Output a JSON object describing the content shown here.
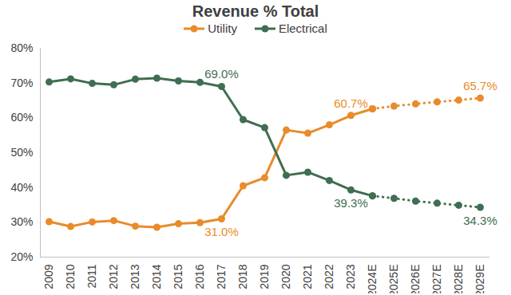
{
  "chart_data": {
    "type": "line",
    "title": "Revenue % Total",
    "categories": [
      "2009",
      "2010",
      "2011",
      "2012",
      "2013",
      "2014",
      "2015",
      "2016",
      "2017",
      "2018",
      "2019",
      "2020",
      "2021",
      "2022",
      "2023",
      "2024E",
      "2025E",
      "2026E",
      "2027E",
      "2028E",
      "2029E"
    ],
    "series": [
      {
        "name": "Utility",
        "color": "#E98B2A",
        "line_style": "solid",
        "marker": "circle",
        "values": [
          30.2,
          28.8,
          30.1,
          30.5,
          28.9,
          28.6,
          29.6,
          29.9,
          31.0,
          40.5,
          42.8,
          56.5,
          55.6,
          58.0,
          60.7,
          62.6,
          null,
          null,
          null,
          null,
          null
        ]
      },
      {
        "name": "Electrical",
        "color": "#3F6E50",
        "line_style": "solid",
        "marker": "circle",
        "values": [
          70.3,
          71.2,
          69.9,
          69.5,
          71.1,
          71.4,
          70.6,
          70.2,
          69.0,
          59.5,
          57.2,
          43.5,
          44.4,
          42.0,
          39.3,
          37.6,
          null,
          null,
          null,
          null,
          null
        ]
      },
      {
        "name": "Utility",
        "color": "#E98B2A",
        "line_style": "dotted",
        "marker": "circle",
        "values": [
          null,
          null,
          null,
          null,
          null,
          null,
          null,
          null,
          null,
          null,
          null,
          null,
          null,
          null,
          null,
          62.6,
          63.4,
          64.0,
          64.6,
          65.1,
          65.7
        ]
      },
      {
        "name": "Electrical",
        "color": "#3F6E50",
        "line_style": "dotted",
        "marker": "circle",
        "values": [
          null,
          null,
          null,
          null,
          null,
          null,
          null,
          null,
          null,
          null,
          null,
          null,
          null,
          null,
          null,
          37.6,
          36.9,
          36.1,
          35.5,
          34.9,
          34.3
        ]
      }
    ],
    "annotations": [
      {
        "text": "69.0%",
        "series": "Electrical",
        "category": "2017"
      },
      {
        "text": "31.0%",
        "series": "Utility",
        "category": "2017"
      },
      {
        "text": "60.7%",
        "series": "Utility",
        "category": "2023"
      },
      {
        "text": "39.3%",
        "series": "Electrical",
        "category": "2023"
      },
      {
        "text": "65.7%",
        "series": "Utility",
        "category": "2029E"
      },
      {
        "text": "34.3%",
        "series": "Electrical",
        "category": "2029E"
      }
    ],
    "ylim": [
      20,
      80
    ],
    "yticks": [
      {
        "value": 20,
        "label": "20%"
      },
      {
        "value": 30,
        "label": "30%"
      },
      {
        "value": 40,
        "label": "40%"
      },
      {
        "value": 50,
        "label": "50%"
      },
      {
        "value": 60,
        "label": "60%"
      },
      {
        "value": 70,
        "label": "70%"
      },
      {
        "value": 80,
        "label": "80%"
      }
    ],
    "grid": false,
    "legend": "top"
  }
}
